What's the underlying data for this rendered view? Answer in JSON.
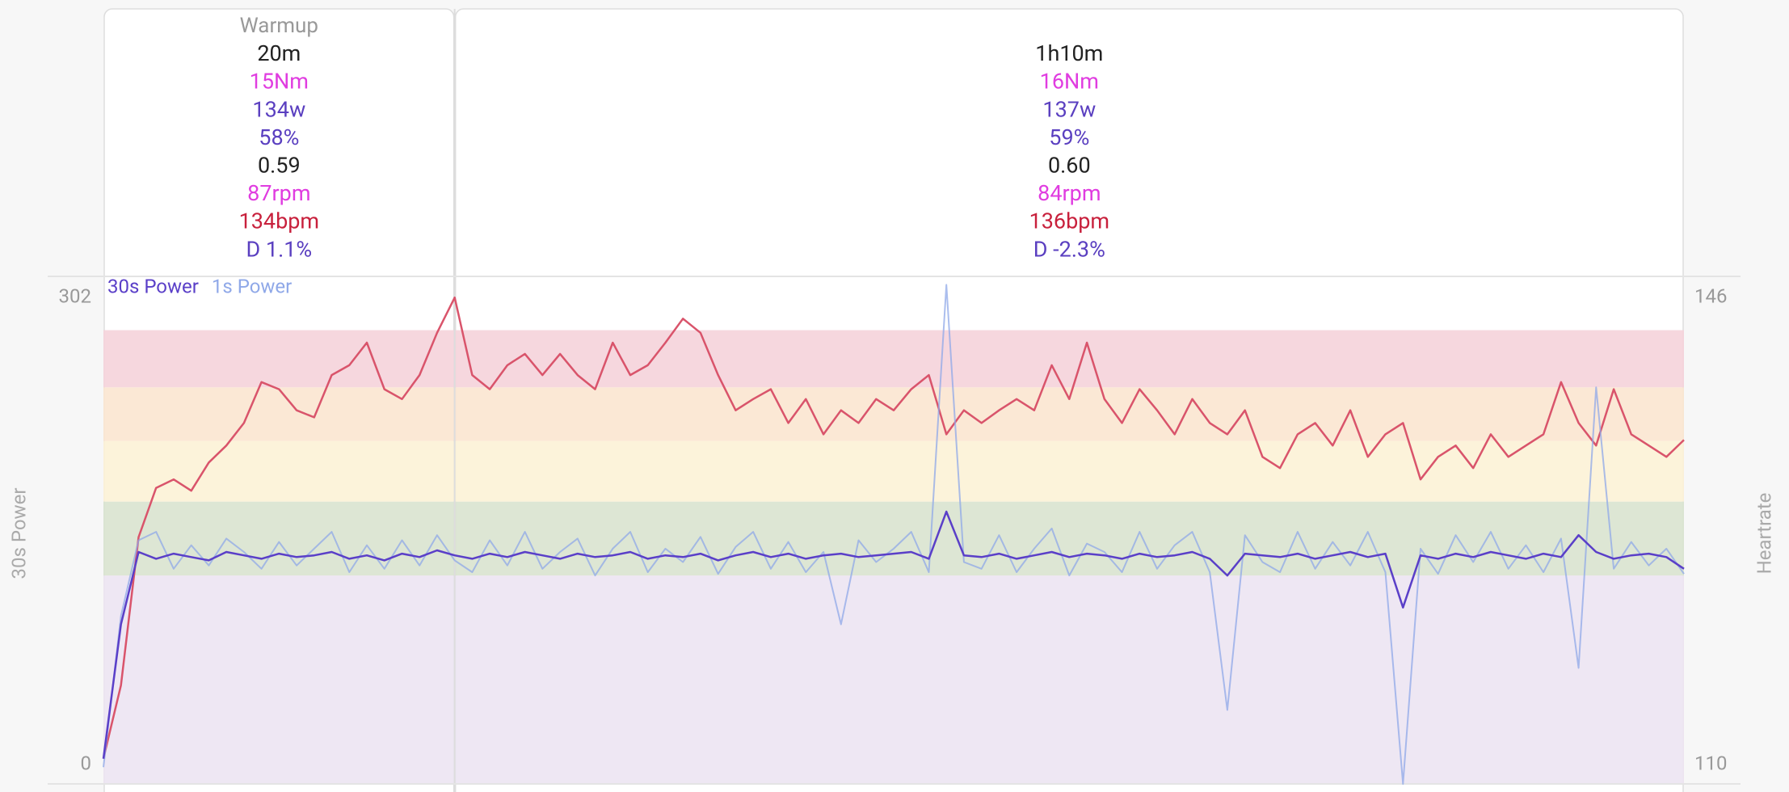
{
  "chart_data": {
    "type": "line",
    "xlim": [
      0,
      90
    ],
    "ylim": [
      0,
      302
    ],
    "yticks": [
      0,
      302
    ],
    "y2lim": [
      110,
      146
    ],
    "y2ticks": [
      110,
      146
    ],
    "ylabel": "30s Power",
    "y2label": "Heartrate",
    "zones": [
      {
        "from": 0,
        "to": 124,
        "color": "#ece4f2"
      },
      {
        "from": 124,
        "to": 168,
        "color": "#d9e3cf"
      },
      {
        "from": 168,
        "to": 204,
        "color": "#fcf2d6"
      },
      {
        "from": 204,
        "to": 236,
        "color": "#fbe5d0"
      },
      {
        "from": 236,
        "to": 270,
        "color": "#f5d3da"
      }
    ],
    "stat_colors": [
      "#222222",
      "#e03ce0",
      "#5a3fc0",
      "#5a3fc0",
      "#222222",
      "#e03ce0",
      "#c8203c",
      "#5a3fc0"
    ],
    "intervals": [
      {
        "start": 0,
        "end": 20,
        "title": "Warmup",
        "stats": [
          "20m",
          "15Nm",
          "134w",
          "58%",
          "0.59",
          "87rpm",
          "134bpm",
          "D 1.1%"
        ]
      },
      {
        "start": 20,
        "end": 90,
        "stats": [
          "1h10m",
          "16Nm",
          "137w",
          "59%",
          "0.60",
          "84rpm",
          "136bpm",
          "D -2.3%"
        ]
      }
    ],
    "x": [
      0,
      1,
      2,
      3,
      4,
      5,
      6,
      7,
      8,
      9,
      10,
      11,
      12,
      13,
      14,
      15,
      16,
      17,
      18,
      19,
      20,
      21,
      22,
      23,
      24,
      25,
      26,
      27,
      28,
      29,
      30,
      31,
      32,
      33,
      34,
      35,
      36,
      37,
      38,
      39,
      40,
      41,
      42,
      43,
      44,
      45,
      46,
      47,
      48,
      49,
      50,
      51,
      52,
      53,
      54,
      55,
      56,
      57,
      58,
      59,
      60,
      61,
      62,
      63,
      64,
      65,
      66,
      67,
      68,
      69,
      70,
      71,
      72,
      73,
      74,
      75,
      76,
      77,
      78,
      79,
      80,
      81,
      82,
      83,
      84,
      85,
      86,
      87,
      88,
      89,
      90
    ],
    "series": [
      {
        "color": "#d9546b",
        "axis": "y2",
        "values": [
          111.8,
          117,
          127.5,
          131,
          131.6,
          130.8,
          132.8,
          134,
          135.6,
          138.5,
          138,
          136.5,
          136,
          139,
          139.7,
          141.3,
          138,
          137.3,
          139,
          142,
          144.5,
          139,
          138,
          139.7,
          140.5,
          139,
          140.5,
          139,
          138,
          141.3,
          139,
          139.7,
          141.3,
          143,
          142,
          139,
          136.5,
          137.3,
          138,
          135.6,
          137.3,
          134.8,
          136.5,
          135.6,
          137.3,
          136.5,
          138,
          139,
          134.8,
          136.5,
          135.6,
          136.5,
          137.3,
          136.5,
          139.7,
          137.3,
          141.3,
          137.3,
          135.6,
          138,
          136.5,
          134.8,
          137.3,
          135.6,
          134.8,
          136.5,
          133.2,
          132.4,
          134.8,
          135.6,
          134,
          136.5,
          133.2,
          134.8,
          135.6,
          131.6,
          133.2,
          134,
          132.4,
          134.8,
          133.2,
          134,
          134.8,
          138.5,
          135.6,
          134,
          138,
          134.8,
          134,
          133.2,
          134.4
        ]
      },
      {
        "name": "1s Power",
        "color": "#8fa8e8",
        "values": [
          10,
          100,
          145,
          150,
          128,
          142,
          130,
          146,
          138,
          128,
          144,
          130,
          140,
          150,
          126,
          142,
          128,
          145,
          130,
          148,
          133,
          126,
          145,
          130,
          150,
          128,
          138,
          146,
          124,
          140,
          150,
          126,
          140,
          132,
          147,
          125,
          141,
          150,
          128,
          144,
          126,
          138,
          95,
          145,
          132,
          140,
          150,
          126,
          297,
          132,
          128,
          148,
          126,
          140,
          152,
          124,
          143,
          138,
          126,
          150,
          128,
          142,
          150,
          126,
          44,
          148,
          132,
          126,
          150,
          128,
          144,
          130,
          150,
          126,
          0,
          140,
          125,
          148,
          132,
          150,
          128,
          142,
          126,
          146,
          69,
          236,
          128,
          144,
          130,
          140,
          125
        ]
      },
      {
        "name": "30s Power",
        "color": "#5a3fc8",
        "values": [
          15,
          95,
          138,
          134,
          137,
          135,
          133,
          138,
          136,
          134,
          137,
          135,
          136,
          138,
          134,
          136,
          133,
          137,
          135,
          139,
          136,
          134,
          137,
          135,
          138,
          136,
          134,
          137,
          135,
          136,
          138,
          134,
          136,
          135,
          137,
          133,
          136,
          138,
          135,
          137,
          134,
          136,
          137,
          135,
          136,
          137,
          138,
          134,
          162,
          136,
          135,
          137,
          134,
          136,
          138,
          135,
          137,
          136,
          134,
          137,
          135,
          136,
          138,
          134,
          124,
          137,
          136,
          135,
          137,
          134,
          136,
          138,
          135,
          137,
          105,
          136,
          134,
          137,
          135,
          138,
          136,
          134,
          137,
          135,
          148,
          138,
          134,
          136,
          137,
          135,
          128
        ]
      }
    ]
  }
}
